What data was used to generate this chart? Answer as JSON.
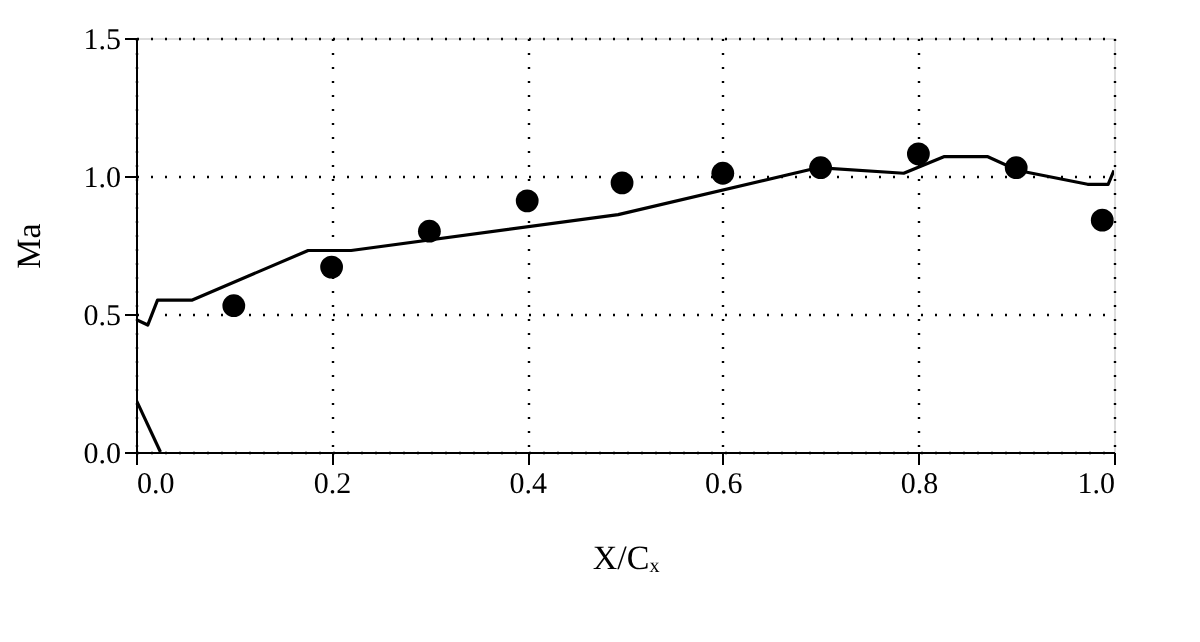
{
  "chart_data": {
    "type": "line",
    "xlabel": "X/Cₓ",
    "ylabel": "Ma",
    "xlim": [
      0,
      1
    ],
    "ylim": [
      0,
      1.5
    ],
    "xticks": [
      {
        "value": 0,
        "label": "0.0"
      },
      {
        "value": 0.2,
        "label": "0.2"
      },
      {
        "value": 0.4,
        "label": "0.4"
      },
      {
        "value": 0.6,
        "label": "0.6"
      },
      {
        "value": 0.8,
        "label": "0.8"
      },
      {
        "value": 1,
        "label": "1.0"
      }
    ],
    "yticks": [
      {
        "value": 0,
        "label": "0.0"
      },
      0.5,
      {
        "value": 1,
        "label": "1.0"
      },
      1.5
    ],
    "grid": true,
    "series": [
      {
        "color": "#000000",
        "marker": "none",
        "line_style": "solid",
        "x": [
          0,
          0.012,
          0.022,
          0.057,
          0.176,
          0.22,
          0.493,
          0.697,
          0.785,
          0.826,
          0.871,
          0.902,
          0.973,
          0.994,
          1.0
        ],
        "values": [
          0.48,
          0.46,
          0.55,
          0.55,
          0.73,
          0.73,
          0.86,
          1.03,
          1.01,
          1.07,
          1.07,
          1.02,
          0.97,
          0.97,
          1.02
        ]
      },
      {
        "color": "#000000",
        "marker": "none",
        "line_style": "solid",
        "x": [
          0,
          0.025
        ],
        "values": [
          0.19,
          0
        ]
      },
      {
        "type": "scatter",
        "color": "#000000",
        "marker": "circle",
        "x": [
          0.1,
          0.2,
          0.3,
          0.4,
          0.497,
          0.6,
          0.7,
          0.8,
          0.9,
          0.988
        ],
        "values": [
          0.53,
          0.67,
          0.8,
          0.91,
          0.975,
          1.01,
          1.03,
          1.08,
          1.03,
          0.84
        ]
      }
    ]
  }
}
